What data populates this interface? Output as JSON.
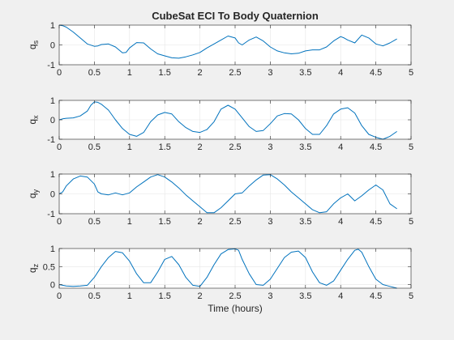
{
  "figure": {
    "background": "#f0f0f0",
    "line_color": "#0072bd"
  },
  "chart_data": [
    {
      "type": "line",
      "title": "CubeSat ECI To Body Quaternion",
      "xlabel": "",
      "ylabel": "q_s",
      "ylabel_base": "q",
      "ylabel_sub": "s",
      "xlim": [
        0,
        5
      ],
      "ylim": [
        -1,
        1
      ],
      "xticks": [
        "0",
        "0.5",
        "1",
        "1.5",
        "2",
        "2.5",
        "3",
        "3.5",
        "4",
        "4.5",
        "5"
      ],
      "yticks": [
        "-1",
        "0",
        "1"
      ],
      "grid": true,
      "series": [
        {
          "x": [
            0,
            0.05,
            0.1,
            0.2,
            0.3,
            0.4,
            0.5,
            0.55,
            0.6,
            0.7,
            0.8,
            0.9,
            0.95,
            1.0,
            1.1,
            1.2,
            1.3,
            1.4,
            1.5,
            1.6,
            1.7,
            1.8,
            1.9,
            2.0,
            2.1,
            2.2,
            2.3,
            2.4,
            2.5,
            2.55,
            2.6,
            2.7,
            2.8,
            2.9,
            3.0,
            3.1,
            3.2,
            3.3,
            3.4,
            3.5,
            3.6,
            3.7,
            3.8,
            3.9,
            4.0,
            4.05,
            4.1,
            4.2,
            4.3,
            4.4,
            4.5,
            4.6,
            4.7,
            4.8
          ],
          "y": [
            1.0,
            0.97,
            0.9,
            0.65,
            0.35,
            0.05,
            -0.07,
            -0.05,
            0.02,
            0.05,
            -0.1,
            -0.4,
            -0.38,
            -0.15,
            0.12,
            0.1,
            -0.2,
            -0.45,
            -0.55,
            -0.65,
            -0.67,
            -0.6,
            -0.5,
            -0.38,
            -0.15,
            0.05,
            0.25,
            0.45,
            0.35,
            0.1,
            0.0,
            0.25,
            0.4,
            0.2,
            -0.1,
            -0.3,
            -0.4,
            -0.45,
            -0.42,
            -0.3,
            -0.25,
            -0.25,
            -0.1,
            0.2,
            0.42,
            0.35,
            0.25,
            0.1,
            0.5,
            0.35,
            0.05,
            -0.05,
            0.1,
            0.3
          ]
        }
      ]
    },
    {
      "type": "line",
      "xlabel": "",
      "ylabel": "q_x",
      "ylabel_base": "q",
      "ylabel_sub": "x",
      "xlim": [
        0,
        5
      ],
      "ylim": [
        -1,
        1
      ],
      "xticks": [
        "0",
        "0.5",
        "1",
        "1.5",
        "2",
        "2.5",
        "3",
        "3.5",
        "4",
        "4.5",
        "5"
      ],
      "yticks": [
        "-1",
        "0",
        "1"
      ],
      "grid": true,
      "series": [
        {
          "x": [
            0,
            0.05,
            0.1,
            0.2,
            0.3,
            0.4,
            0.45,
            0.5,
            0.55,
            0.6,
            0.7,
            0.8,
            0.9,
            1.0,
            1.1,
            1.2,
            1.3,
            1.4,
            1.5,
            1.6,
            1.7,
            1.8,
            1.9,
            2.0,
            2.1,
            2.2,
            2.3,
            2.4,
            2.5,
            2.6,
            2.7,
            2.8,
            2.9,
            3.0,
            3.1,
            3.2,
            3.3,
            3.4,
            3.5,
            3.6,
            3.7,
            3.8,
            3.9,
            4.0,
            4.1,
            4.2,
            4.3,
            4.4,
            4.5,
            4.6,
            4.7,
            4.8
          ],
          "y": [
            0.0,
            0.05,
            0.08,
            0.1,
            0.2,
            0.45,
            0.75,
            0.92,
            0.9,
            0.8,
            0.5,
            0.0,
            -0.45,
            -0.75,
            -0.85,
            -0.65,
            -0.1,
            0.25,
            0.38,
            0.3,
            -0.1,
            -0.4,
            -0.6,
            -0.65,
            -0.5,
            -0.1,
            0.55,
            0.75,
            0.55,
            0.1,
            -0.35,
            -0.6,
            -0.55,
            -0.2,
            0.2,
            0.32,
            0.3,
            0.0,
            -0.45,
            -0.75,
            -0.75,
            -0.3,
            0.3,
            0.55,
            0.62,
            0.35,
            -0.3,
            -0.75,
            -0.9,
            -1.0,
            -0.85,
            -0.6
          ]
        }
      ]
    },
    {
      "type": "line",
      "xlabel": "",
      "ylabel": "q_y",
      "ylabel_base": "q",
      "ylabel_sub": "y",
      "xlim": [
        0,
        5
      ],
      "ylim": [
        -1,
        1
      ],
      "xticks": [
        "0",
        "0.5",
        "1",
        "1.5",
        "2",
        "2.5",
        "3",
        "3.5",
        "4",
        "4.5",
        "5"
      ],
      "yticks": [
        "-1",
        "0",
        "1"
      ],
      "grid": true,
      "series": [
        {
          "x": [
            0,
            0.05,
            0.1,
            0.2,
            0.3,
            0.4,
            0.5,
            0.55,
            0.6,
            0.7,
            0.8,
            0.9,
            1.0,
            1.1,
            1.2,
            1.3,
            1.4,
            1.5,
            1.6,
            1.7,
            1.8,
            1.9,
            2.0,
            2.1,
            2.2,
            2.3,
            2.4,
            2.5,
            2.6,
            2.7,
            2.8,
            2.9,
            3.0,
            3.1,
            3.2,
            3.3,
            3.4,
            3.5,
            3.6,
            3.7,
            3.8,
            3.9,
            4.0,
            4.1,
            4.2,
            4.3,
            4.4,
            4.5,
            4.6,
            4.7,
            4.8
          ],
          "y": [
            0.0,
            0.1,
            0.4,
            0.75,
            0.9,
            0.85,
            0.5,
            0.1,
            0.0,
            -0.05,
            0.05,
            -0.05,
            0.05,
            0.35,
            0.6,
            0.85,
            0.97,
            0.85,
            0.6,
            0.3,
            -0.05,
            -0.35,
            -0.65,
            -0.95,
            -0.95,
            -0.7,
            -0.35,
            0.0,
            0.05,
            0.4,
            0.7,
            0.95,
            0.97,
            0.75,
            0.45,
            0.1,
            -0.2,
            -0.5,
            -0.8,
            -0.95,
            -0.9,
            -0.5,
            -0.2,
            0.0,
            -0.35,
            -0.1,
            0.2,
            0.45,
            0.2,
            -0.5,
            -0.75
          ]
        }
      ]
    },
    {
      "type": "line",
      "xlabel": "Time (hours)",
      "ylabel": "q_z",
      "ylabel_base": "q",
      "ylabel_sub": "z",
      "xlim": [
        0,
        5
      ],
      "ylim": [
        -0.1,
        1
      ],
      "xticks": [
        "0",
        "0.5",
        "1",
        "1.5",
        "2",
        "2.5",
        "3",
        "3.5",
        "4",
        "4.5",
        "5"
      ],
      "yticks": [
        "0",
        "0.5",
        "1"
      ],
      "grid": true,
      "series": [
        {
          "x": [
            0,
            0.05,
            0.1,
            0.2,
            0.3,
            0.4,
            0.5,
            0.6,
            0.7,
            0.8,
            0.9,
            1.0,
            1.1,
            1.2,
            1.3,
            1.4,
            1.5,
            1.6,
            1.7,
            1.8,
            1.9,
            2.0,
            2.1,
            2.2,
            2.3,
            2.4,
            2.5,
            2.55,
            2.6,
            2.7,
            2.8,
            2.9,
            3.0,
            3.1,
            3.2,
            3.3,
            3.4,
            3.5,
            3.6,
            3.7,
            3.8,
            3.9,
            4.0,
            4.1,
            4.2,
            4.25,
            4.3,
            4.4,
            4.5,
            4.6,
            4.7,
            4.8
          ],
          "y": [
            0.0,
            -0.02,
            -0.04,
            -0.05,
            -0.04,
            -0.02,
            0.2,
            0.5,
            0.75,
            0.92,
            0.88,
            0.65,
            0.3,
            0.05,
            0.05,
            0.35,
            0.7,
            0.78,
            0.55,
            0.2,
            -0.02,
            -0.05,
            0.2,
            0.55,
            0.85,
            0.97,
            0.99,
            0.95,
            0.7,
            0.3,
            0.0,
            -0.02,
            0.15,
            0.45,
            0.75,
            0.9,
            0.93,
            0.75,
            0.35,
            0.05,
            -0.02,
            0.1,
            0.4,
            0.7,
            0.95,
            0.98,
            0.9,
            0.5,
            0.15,
            0.0,
            -0.05,
            -0.1
          ]
        }
      ]
    }
  ]
}
